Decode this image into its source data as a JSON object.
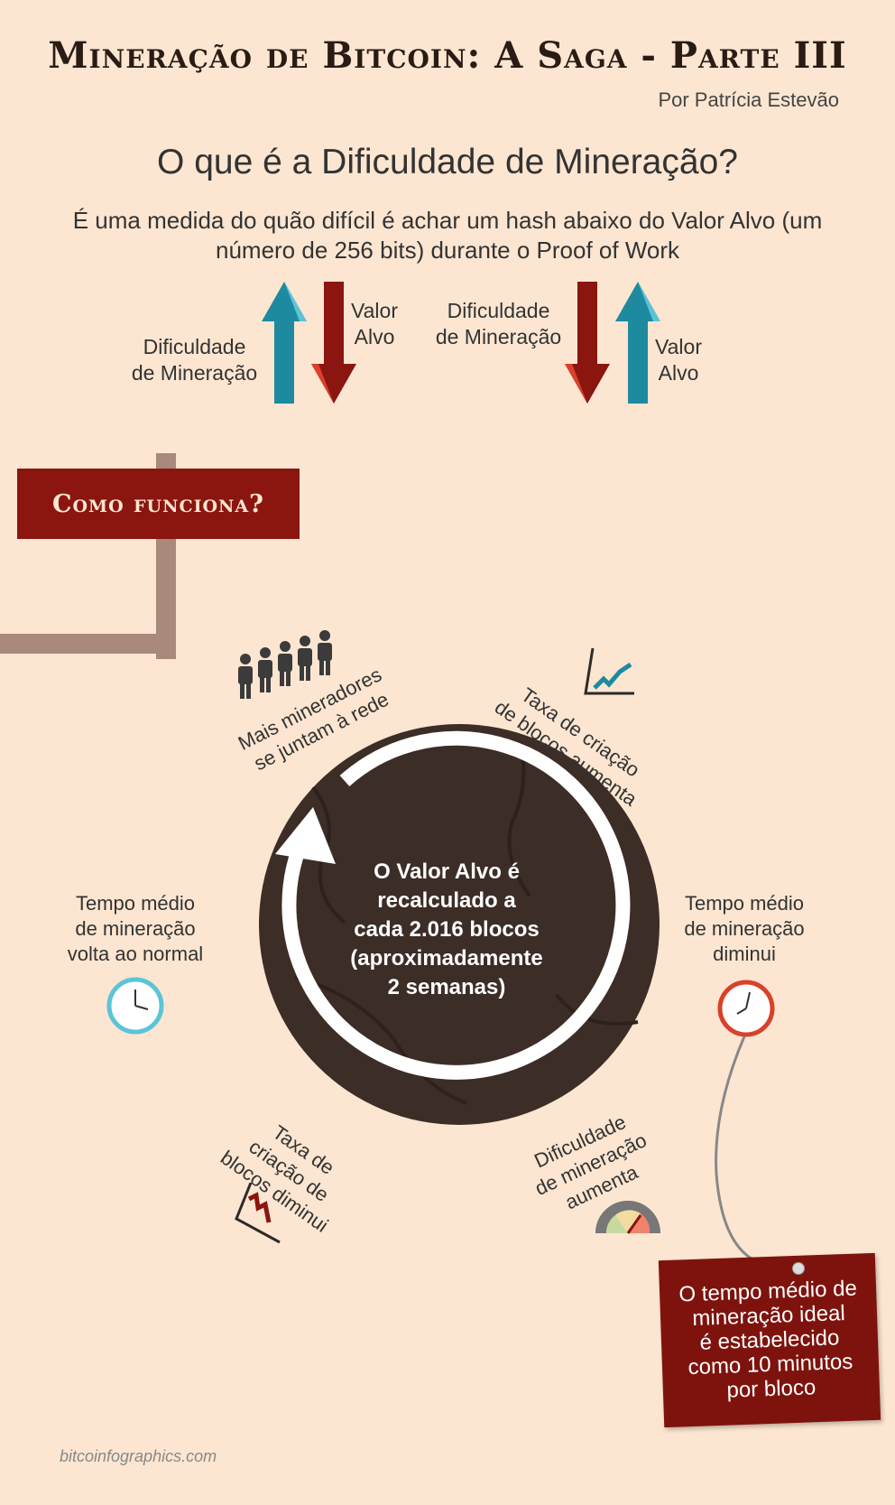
{
  "header": {
    "title": "Mineração de Bitcoin: A Saga - Parte III",
    "author": "Por Patrícia Estevão"
  },
  "intro": {
    "question": "O que é a Dificuldade de Mineração?",
    "definition": "É uma medida do quão difícil é achar um hash abaixo do Valor Alvo (um número de 256 bits) durante o Proof of Work"
  },
  "arrows": {
    "left_up_label": [
      "Dificuldade",
      "de Mineração"
    ],
    "left_down_label": [
      "Valor",
      "Alvo"
    ],
    "right_down_label": [
      "Dificuldade",
      "de Mineração"
    ],
    "right_up_label": [
      "Valor",
      "Alvo"
    ],
    "colors": {
      "up": "#1d8aa0",
      "down": "#8b150f"
    }
  },
  "section": {
    "title": "Como funciona?"
  },
  "cycle": {
    "center_text": [
      "O Valor Alvo é",
      "recalculado a",
      "cada 2.016 blocos",
      "(aproximadamente",
      "2 semanas)"
    ],
    "steps": {
      "miners": [
        "Mais mineradores",
        "se juntam à rede"
      ],
      "rate_up": [
        "Taxa de criação",
        "de blocos aumenta"
      ],
      "time_down": [
        "Tempo médio",
        "de mineração",
        "diminui"
      ],
      "difficulty_up": [
        "Dificuldade",
        "de mineração",
        "aumenta"
      ],
      "rate_down": [
        "Taxa de",
        "criação de",
        "blocos diminui"
      ],
      "time_normal": [
        "Tempo médio",
        "de mineração",
        "volta ao normal"
      ]
    },
    "icons": [
      "people-icon",
      "chart-up-icon",
      "clock-icon",
      "gauge-icon",
      "chart-down-icon",
      "clock-icon"
    ]
  },
  "note": {
    "text": [
      "O tempo médio de",
      "mineração ideal",
      "é estabelecido",
      "como 10 minutos",
      "por bloco"
    ]
  },
  "footer": {
    "site": "bitcoinfographics.com"
  },
  "colors": {
    "background": "#fce6d1",
    "accent_red": "#8b150f",
    "teal": "#1d8aa0",
    "circle": "#3c2d27"
  }
}
